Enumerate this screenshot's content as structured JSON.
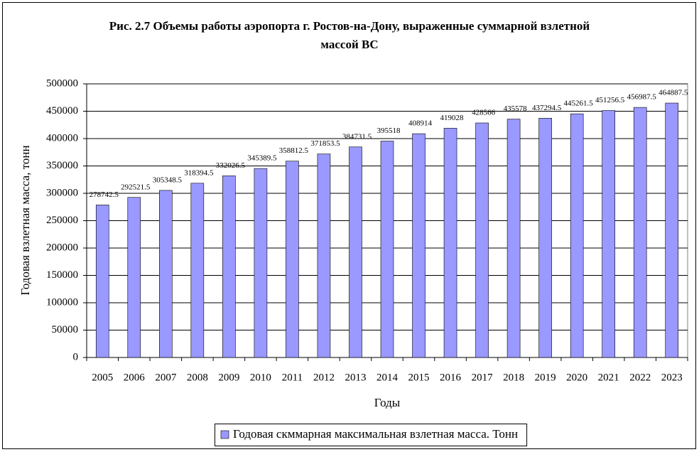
{
  "chart_data": {
    "type": "bar",
    "title": "Рис. 2.7 Объемы работы аэропорта г. Ростов-на-Дону, выраженные суммарной взлетной массой ВС",
    "x_label": "Годы",
    "y_label": "Годовая взлетная масса, тонн",
    "categories": [
      "2005",
      "2006",
      "2007",
      "2008",
      "2009",
      "2010",
      "2011",
      "2012",
      "2013",
      "2014",
      "2015",
      "2016",
      "2017",
      "2018",
      "2019",
      "2020",
      "2021",
      "2022",
      "2023"
    ],
    "series": [
      {
        "name": "Годовая скммарная максимальная взлетная масса. Тонн",
        "color": "#9999ff",
        "values": [
          278742.5,
          292521.5,
          305348.5,
          318394.5,
          332026.5,
          345389.5,
          358812.5,
          371853.5,
          384731.5,
          395518,
          408914,
          419028,
          428566,
          435578,
          437294.5,
          445261.5,
          451256.5,
          456987.5,
          464887.5
        ]
      }
    ],
    "ylim": [
      0,
      500000
    ],
    "yticks": [
      0,
      50000,
      100000,
      150000,
      200000,
      250000,
      300000,
      350000,
      400000,
      450000,
      500000
    ],
    "grid": true,
    "legend": "bottom"
  }
}
